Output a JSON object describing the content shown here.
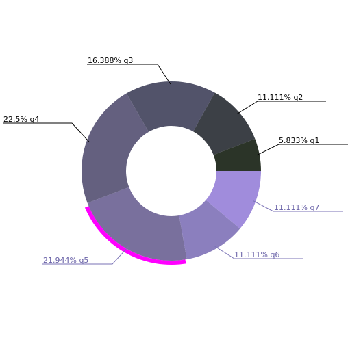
{
  "chart_data": {
    "type": "pie",
    "variant": "donut",
    "slices": [
      {
        "label": "5.833% q1",
        "name": "q1",
        "percent": 5.833,
        "color": "#2b3428",
        "label_color": "#000000"
      },
      {
        "label": "11.111% q2",
        "name": "q2",
        "percent": 11.111,
        "color": "#3c4046",
        "label_color": "#000000"
      },
      {
        "label": "16.388% q3",
        "name": "q3",
        "percent": 16.388,
        "color": "#52536a",
        "label_color": "#000000"
      },
      {
        "label": "22.5% q4",
        "name": "q4",
        "percent": 22.5,
        "color": "#64607f",
        "label_color": "#000000"
      },
      {
        "label": "21.944% q5",
        "name": "q5",
        "percent": 21.944,
        "color": "#79709d",
        "label_color": "#6a63a8",
        "highlighted": true
      },
      {
        "label": "11.111% q6",
        "name": "q6",
        "percent": 11.111,
        "color": "#8b7fbe",
        "label_color": "#6a63a8"
      },
      {
        "label": "11.111% q7",
        "name": "q7",
        "percent": 11.111,
        "color": "#a08cdc",
        "label_color": "#6a63a8"
      }
    ],
    "highlight_color": "#ff00ff",
    "legend": "none"
  }
}
